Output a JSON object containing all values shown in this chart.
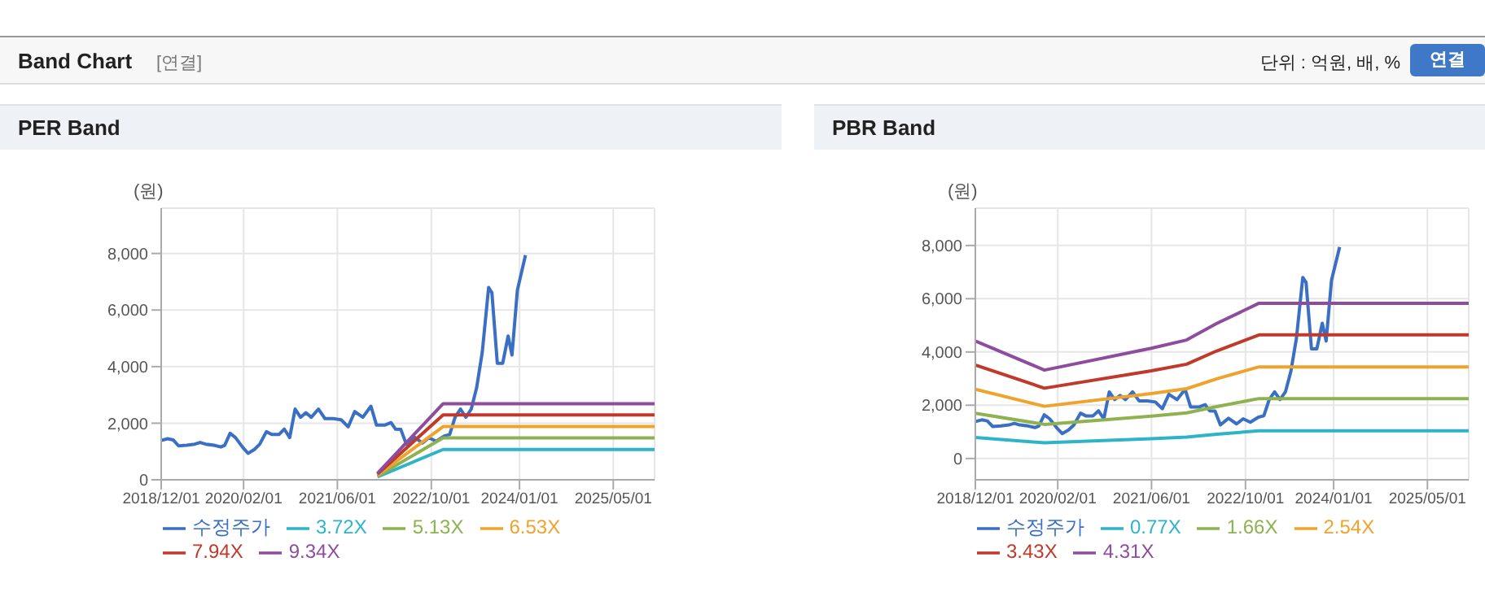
{
  "chart_data": [
    {
      "type": "line",
      "title": "PER Band",
      "ylabel": "(원)",
      "annotations": [
        "Band Chart",
        "[연결]",
        "단위 : 억원, 배, %",
        "연결"
      ],
      "xlim": [
        "2018-12-01",
        "2025-12-01"
      ],
      "xticks": [
        {
          "value": "2018-12-01",
          "label": "2018/12/01"
        },
        {
          "value": "2020-02-01",
          "label": "2020/02/01"
        },
        {
          "value": "2021-06-01",
          "label": "2021/06/01"
        },
        {
          "value": "2022-10-01",
          "label": "2022/10/01"
        },
        {
          "value": "2024-01-01",
          "label": "2024/01/01"
        },
        {
          "value": "2025-05-01",
          "label": "2025/05/01"
        }
      ],
      "ylim": [
        0,
        9600
      ],
      "yticks": [
        {
          "value": 0,
          "label": "0"
        },
        {
          "value": 2000,
          "label": "2,000"
        },
        {
          "value": 4000,
          "label": "4,000"
        },
        {
          "value": 6000,
          "label": "6,000"
        },
        {
          "value": 8000,
          "label": "8,000"
        }
      ],
      "grid": true,
      "legend": "bottom",
      "series": [
        {
          "name": "수정주가",
          "color": "#3a6fc4",
          "x": [
            "2018-12-01",
            "2019-01-04",
            "2019-02-01",
            "2019-03-01",
            "2019-04-12",
            "2019-05-24",
            "2019-06-21",
            "2019-07-19",
            "2019-08-31",
            "2019-10-06",
            "2019-10-26",
            "2019-11-23",
            "2019-12-21",
            "2020-01-26",
            "2020-02-24",
            "2020-03-28",
            "2020-04-25",
            "2020-05-29",
            "2020-06-26",
            "2020-08-02",
            "2020-08-30",
            "2020-09-27",
            "2020-10-25",
            "2020-11-22",
            "2020-12-20",
            "2021-01-17",
            "2021-02-23",
            "2021-03-29",
            "2021-05-10",
            "2021-06-21",
            "2021-07-27",
            "2021-08-30",
            "2021-10-11",
            "2021-11-22",
            "2021-12-21",
            "2022-02-01",
            "2022-03-06",
            "2022-03-29",
            "2022-04-26",
            "2022-05-24",
            "2022-07-05",
            "2022-08-16",
            "2022-09-19",
            "2022-10-26",
            "2022-12-07",
            "2023-01-04",
            "2023-02-01",
            "2023-03-01",
            "2023-03-29",
            "2023-04-26",
            "2023-05-24",
            "2023-06-22",
            "2023-07-25",
            "2023-08-11",
            "2023-09-08",
            "2023-10-06",
            "2023-11-03",
            "2023-11-23",
            "2023-12-21",
            "2024-02-01"
          ],
          "values": [
            1390,
            1450,
            1410,
            1200,
            1220,
            1260,
            1320,
            1260,
            1220,
            1160,
            1220,
            1640,
            1490,
            1160,
            935,
            1070,
            1260,
            1700,
            1600,
            1600,
            1790,
            1490,
            2500,
            2210,
            2370,
            2210,
            2500,
            2160,
            2160,
            2120,
            1870,
            2410,
            2210,
            2600,
            1930,
            1930,
            2020,
            1790,
            1780,
            1260,
            1510,
            1300,
            1490,
            1360,
            1550,
            1600,
            2210,
            2500,
            2210,
            2500,
            3260,
            4510,
            6800,
            6610,
            4120,
            4120,
            5080,
            4410,
            6700,
            7940
          ]
        },
        {
          "name": "3.72X",
          "color": "#2fb3c6",
          "x": [
            "2021-12-26",
            "2022-12-01",
            "2025-12-01"
          ],
          "values": [
            100,
            1070,
            1070
          ]
        },
        {
          "name": "5.13X",
          "color": "#8db24f",
          "x": [
            "2021-12-26",
            "2022-12-01",
            "2025-12-01"
          ],
          "values": [
            130,
            1480,
            1480
          ]
        },
        {
          "name": "6.53X",
          "color": "#f0a32c",
          "x": [
            "2021-12-26",
            "2022-12-01",
            "2025-12-01"
          ],
          "values": [
            160,
            1880,
            1880
          ]
        },
        {
          "name": "7.94X",
          "color": "#c0392b",
          "x": [
            "2021-12-26",
            "2022-12-01",
            "2025-12-01"
          ],
          "values": [
            200,
            2290,
            2290
          ]
        },
        {
          "name": "9.34X",
          "color": "#8e4c9e",
          "x": [
            "2021-12-26",
            "2022-12-01",
            "2025-12-01"
          ],
          "values": [
            230,
            2690,
            2690
          ]
        }
      ]
    },
    {
      "type": "line",
      "title": "PBR Band",
      "ylabel": "(원)",
      "xlim": [
        "2018-12-01",
        "2025-12-01"
      ],
      "xticks": [
        {
          "value": "2018-12-01",
          "label": "2018/12/01"
        },
        {
          "value": "2020-02-01",
          "label": "2020/02/01"
        },
        {
          "value": "2021-06-01",
          "label": "2021/06/01"
        },
        {
          "value": "2022-10-01",
          "label": "2022/10/01"
        },
        {
          "value": "2024-01-01",
          "label": "2024/01/01"
        },
        {
          "value": "2025-05-01",
          "label": "2025/05/01"
        }
      ],
      "ylim": [
        -800,
        9400
      ],
      "yticks": [
        {
          "value": 0,
          "label": "0"
        },
        {
          "value": 2000,
          "label": "2,000"
        },
        {
          "value": 4000,
          "label": "4,000"
        },
        {
          "value": 6000,
          "label": "6,000"
        },
        {
          "value": 8000,
          "label": "8,000"
        }
      ],
      "grid": true,
      "legend": "bottom",
      "series": [
        {
          "name": "수정주가",
          "color": "#3a6fc4",
          "x": [
            "2018-12-01",
            "2019-01-04",
            "2019-02-01",
            "2019-03-01",
            "2019-04-12",
            "2019-05-24",
            "2019-06-21",
            "2019-07-19",
            "2019-08-31",
            "2019-10-06",
            "2019-10-26",
            "2019-11-23",
            "2019-12-21",
            "2020-01-26",
            "2020-02-24",
            "2020-03-28",
            "2020-04-25",
            "2020-05-29",
            "2020-06-26",
            "2020-08-02",
            "2020-08-30",
            "2020-09-27",
            "2020-10-25",
            "2020-11-22",
            "2020-12-20",
            "2021-01-17",
            "2021-02-23",
            "2021-03-29",
            "2021-05-10",
            "2021-06-21",
            "2021-07-27",
            "2021-08-30",
            "2021-10-11",
            "2021-11-22",
            "2021-12-21",
            "2022-02-01",
            "2022-03-06",
            "2022-03-29",
            "2022-04-26",
            "2022-05-24",
            "2022-07-05",
            "2022-08-16",
            "2022-09-19",
            "2022-10-26",
            "2022-12-07",
            "2023-01-04",
            "2023-02-01",
            "2023-03-01",
            "2023-03-29",
            "2023-04-26",
            "2023-05-24",
            "2023-06-22",
            "2023-07-25",
            "2023-08-11",
            "2023-09-08",
            "2023-10-06",
            "2023-11-03",
            "2023-11-23",
            "2023-12-21",
            "2024-02-01"
          ],
          "values": [
            1390,
            1450,
            1410,
            1200,
            1220,
            1260,
            1320,
            1260,
            1220,
            1160,
            1220,
            1640,
            1490,
            1160,
            935,
            1070,
            1260,
            1700,
            1600,
            1600,
            1790,
            1490,
            2500,
            2210,
            2370,
            2210,
            2500,
            2160,
            2160,
            2120,
            1870,
            2410,
            2210,
            2600,
            1930,
            1930,
            2020,
            1790,
            1780,
            1260,
            1510,
            1300,
            1490,
            1360,
            1550,
            1600,
            2210,
            2500,
            2210,
            2500,
            3260,
            4510,
            6800,
            6610,
            4120,
            4120,
            5080,
            4410,
            6700,
            7940
          ]
        },
        {
          "name": "0.77X",
          "color": "#2fb3c6",
          "x": [
            "2018-12-01",
            "2019-11-24",
            "2021-05-31",
            "2021-11-30",
            "2022-05-05",
            "2022-12-10",
            "2025-12-01"
          ],
          "values": [
            790,
            590,
            740,
            800,
            910,
            1040,
            1040
          ]
        },
        {
          "name": "1.66X",
          "color": "#8db24f",
          "x": [
            "2018-12-01",
            "2019-11-24",
            "2021-05-31",
            "2021-11-30",
            "2022-05-05",
            "2022-12-10",
            "2025-12-01"
          ],
          "values": [
            1700,
            1280,
            1590,
            1710,
            1950,
            2250,
            2250
          ]
        },
        {
          "name": "2.54X",
          "color": "#f0a32c",
          "x": [
            "2018-12-01",
            "2019-11-24",
            "2021-05-31",
            "2021-11-30",
            "2022-05-05",
            "2022-12-10",
            "2025-12-01"
          ],
          "values": [
            2600,
            1960,
            2440,
            2620,
            2990,
            3440,
            3440
          ]
        },
        {
          "name": "3.43X",
          "color": "#c0392b",
          "x": [
            "2018-12-01",
            "2019-11-24",
            "2021-05-31",
            "2021-11-30",
            "2022-05-05",
            "2022-12-10",
            "2025-12-01"
          ],
          "values": [
            3510,
            2640,
            3290,
            3540,
            4040,
            4640,
            4640
          ]
        },
        {
          "name": "4.31X",
          "color": "#8e4c9e",
          "x": [
            "2018-12-01",
            "2019-11-24",
            "2021-05-31",
            "2021-11-30",
            "2022-05-05",
            "2022-12-10",
            "2025-12-01"
          ],
          "values": [
            4410,
            3320,
            4140,
            4450,
            5070,
            5830,
            5830
          ]
        }
      ]
    }
  ]
}
